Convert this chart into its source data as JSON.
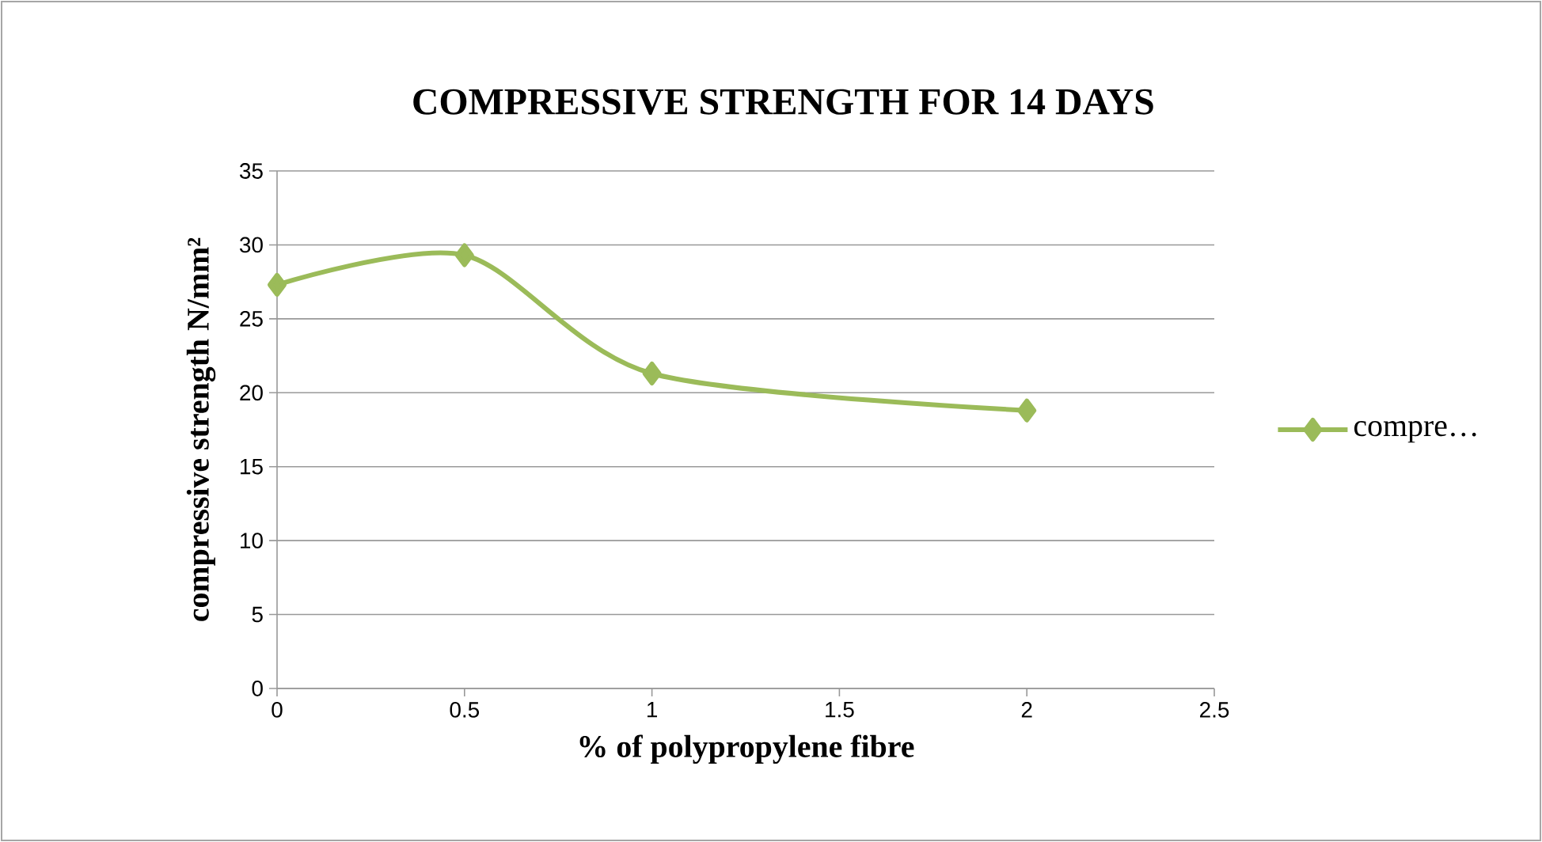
{
  "chart_data": {
    "type": "line",
    "title": "COMPRESSIVE STRENGTH FOR 14 DAYS",
    "xlabel": "% of polypropylene fibre",
    "ylabel": "compressive strength N/mm²",
    "x": [
      0,
      0.5,
      1,
      2
    ],
    "series": [
      {
        "name": "compre…",
        "color": "#9bbb59",
        "values": [
          27.3,
          29.3,
          21.3,
          18.8
        ]
      }
    ],
    "xlim": [
      0,
      2.5
    ],
    "xticks": [
      0,
      0.5,
      1,
      1.5,
      2,
      2.5
    ],
    "ylim": [
      0,
      35
    ],
    "yticks": [
      0,
      5,
      10,
      15,
      20,
      25,
      30,
      35
    ],
    "grid": "y",
    "legend": "right",
    "marker": "diamond",
    "line_style": "solid"
  }
}
